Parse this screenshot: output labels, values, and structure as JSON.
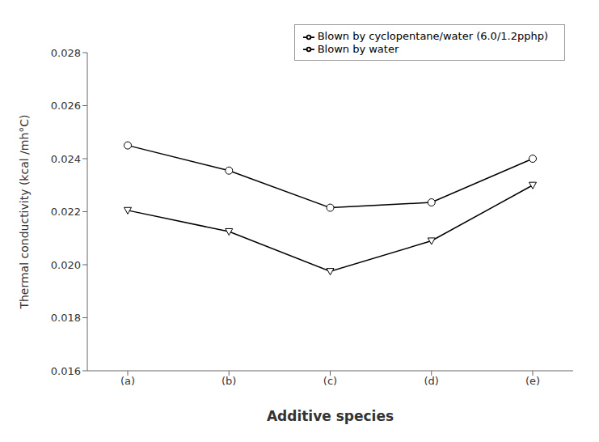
{
  "chart_data": {
    "type": "line",
    "categories": [
      "(a)",
      "(b)",
      "(c)",
      "(d)",
      "(e)"
    ],
    "series": [
      {
        "name": "Blown by water",
        "color": "black",
        "marker": "circle",
        "line_style": "solid",
        "values": [
          0.0245,
          0.02355,
          0.02215,
          0.02235,
          0.024
        ]
      },
      {
        "name": "Blown by cyclopentane/water (6.0/1.2pphp)",
        "color": "black",
        "marker": "triangle-down",
        "line_style": "solid",
        "values": [
          0.02205,
          0.02125,
          0.01975,
          0.0209,
          0.023
        ]
      }
    ],
    "xlabel": "Additive species",
    "ylabel": "Thermal conductivity (kcal /mh°C)",
    "ylim": [
      0.016,
      0.028
    ],
    "yticks": [
      0.016,
      0.018,
      {
        "value": 0.02,
        "label": "0.020"
      },
      0.022,
      0.024,
      0.026,
      0.028
    ],
    "grid": false,
    "legend": "upper right"
  }
}
